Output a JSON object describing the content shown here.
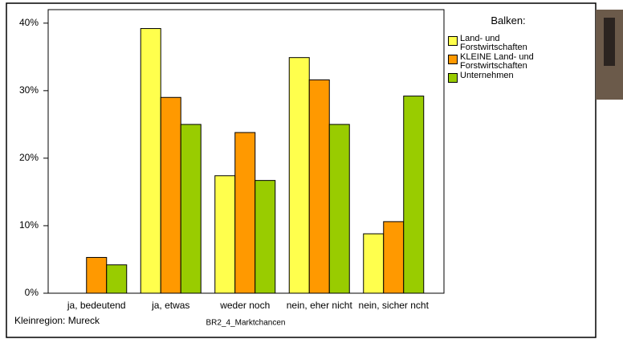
{
  "chart_data": {
    "type": "bar",
    "categories": [
      "ja, bedeutend",
      "ja, etwas",
      "weder noch",
      "nein, eher nicht",
      "nein, sicher ncht"
    ],
    "series": [
      {
        "name": "Land- und Forstwirtschaften",
        "color": "#ffff4d",
        "values": [
          0,
          39.2,
          17.4,
          34.9,
          8.8
        ]
      },
      {
        "name": "KLEINE Land- und Forstwirtschaften",
        "color": "#ff9900",
        "values": [
          5.3,
          29.0,
          23.8,
          31.6,
          10.6
        ]
      },
      {
        "name": "Unternehmen",
        "color": "#99cc00",
        "values": [
          4.2,
          25.0,
          16.7,
          25.0,
          29.2
        ]
      }
    ],
    "legend_title": "Balken:",
    "x_label": "BR2_4_Marktchancen",
    "footnote": "Kleinregion: Mureck",
    "ylim": [
      0,
      42
    ],
    "yticks": [
      {
        "value": 0,
        "label": "0%"
      },
      {
        "value": 10,
        "label": "10%"
      },
      {
        "value": 20,
        "label": "20%"
      },
      {
        "value": 30,
        "label": "30%"
      },
      {
        "value": 40,
        "label": "40%"
      }
    ],
    "grid": false
  }
}
